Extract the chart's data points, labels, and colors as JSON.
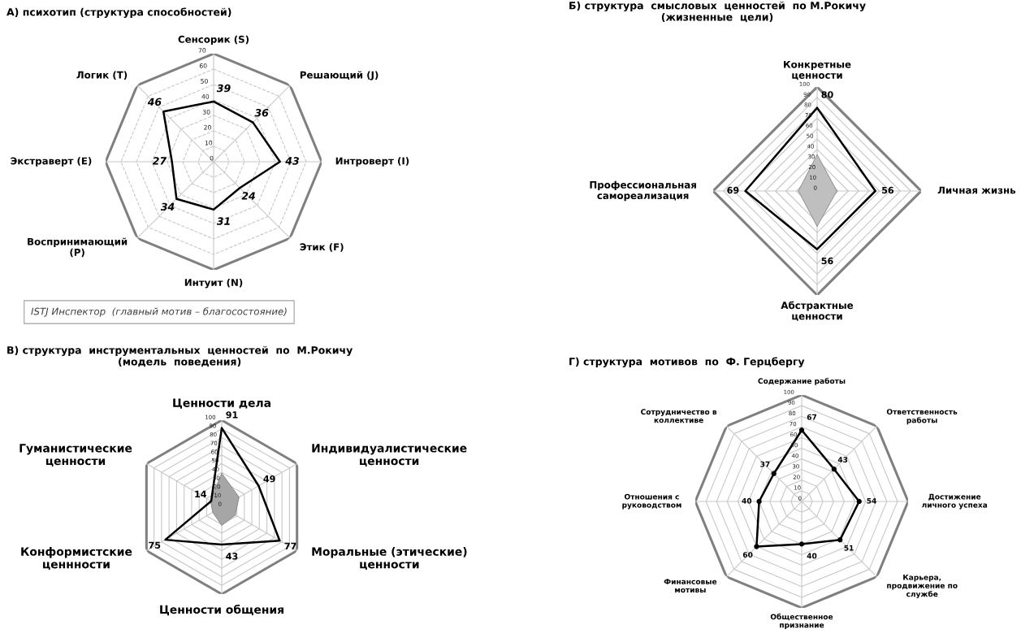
{
  "chart_data": [
    {
      "type": "radar",
      "title": "А) психотип (структура способностей)",
      "categories": [
        "Сенсорик (S)",
        "Решающий (J)",
        "Интроверт (I)",
        "Этик (F)",
        "Интуит (N)",
        "Воспринимающий\n(P)",
        "Экстраверт (E)",
        "Логик (T)"
      ],
      "series": [
        {
          "color": "#000000",
          "values": [
            39,
            36,
            43,
            24,
            31,
            34,
            27,
            46
          ]
        }
      ],
      "ylim": [
        0,
        70
      ],
      "yticks": [
        0,
        10,
        20,
        30,
        40,
        50,
        60,
        70
      ],
      "grid": true,
      "data_labels": true,
      "annotations": [
        "ISTJ Инспектор  (главный мотив – благосостояние)"
      ]
    },
    {
      "type": "radar",
      "title": "Б) структура  смысловых  ценностей  по М.Рокичу\n(жизненные  цели)",
      "categories": [
        "Конкретные\nценности",
        "Личная жизнь",
        "Абстрактные\nценности",
        "Профессиональная\nсамореализация"
      ],
      "series": [
        {
          "type": "area",
          "color": "#bfbfbf",
          "values": [
            35,
            19,
            34,
            18
          ]
        },
        {
          "color": "#000000",
          "values": [
            80,
            56,
            56,
            69
          ],
          "value_labels": [
            "80",
            "56",
            "56",
            "69"
          ]
        }
      ],
      "ylim": [
        0,
        100
      ],
      "yticks": [
        0,
        10,
        20,
        30,
        40,
        50,
        60,
        70,
        80,
        90,
        100
      ],
      "grid": true
    },
    {
      "type": "radar",
      "title": "В) структура  инструментальных  ценностей  по  М.Рокичу\n(модель  поведения)",
      "categories": [
        "Ценности дела",
        "Индивидуалистические\nценности",
        "Моральные (этические)\nценности",
        "Ценности общения",
        "Конформистские\nценнности",
        "Гуманистические\nценности"
      ],
      "series": [
        {
          "type": "area",
          "color": "#a6a6a6",
          "values": [
            39,
            23,
            18,
            21,
            12,
            15
          ]
        },
        {
          "color": "#000000",
          "values": [
            91,
            49,
            77,
            43,
            75,
            14
          ],
          "value_labels": [
            "91",
            "49",
            "77",
            "43",
            "75",
            "14"
          ]
        }
      ],
      "ylim": [
        0,
        100
      ],
      "yticks": [
        0,
        10,
        20,
        30,
        40,
        50,
        60,
        70,
        80,
        90,
        100
      ],
      "grid": true
    },
    {
      "type": "radar",
      "title": "Г) структура  мотивов  по  Ф. Герцбергу",
      "categories": [
        "Содержание работы",
        "Ответственность\nработы",
        "Достижение\nличного успеха",
        "Карьера,\nпродвижение по\nслужбе",
        "Общественное\nпризнание",
        "Финансовые\nмотивы",
        "Отношения с\nруководством",
        "Сотрудничество в\nколлективе"
      ],
      "series": [
        {
          "color": "#000000",
          "values": [
            67,
            43,
            54,
            51,
            40,
            60,
            40,
            37
          ]
        }
      ],
      "ylim": [
        0,
        100
      ],
      "yticks": [
        0,
        10,
        20,
        30,
        40,
        50,
        60,
        70,
        80,
        90,
        100
      ],
      "grid": true,
      "data_labels": true,
      "marker": "circle"
    }
  ]
}
